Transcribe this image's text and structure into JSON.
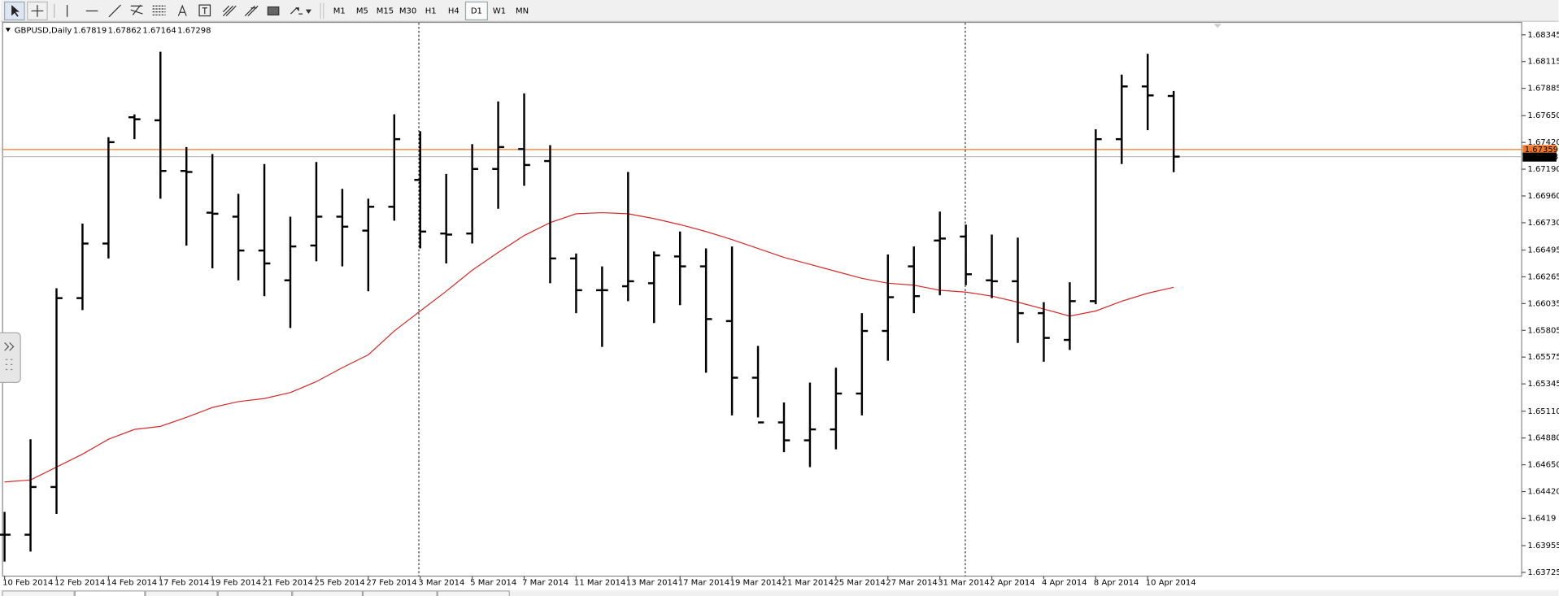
{
  "toolbar": {
    "timeframes": [
      "M1",
      "M5",
      "M15",
      "M30",
      "H1",
      "H4",
      "D1",
      "W1",
      "MN"
    ],
    "active_timeframe": "D1"
  },
  "chart_data": {
    "type": "ohlc",
    "title": "GBPUSD,Daily",
    "categories": [
      "10 Feb 2014",
      null,
      "12 Feb 2014",
      null,
      "14 Feb 2014",
      null,
      "17 Feb 2014",
      null,
      "19 Feb 2014",
      null,
      "21 Feb 2014",
      null,
      "25 Feb 2014",
      null,
      "27 Feb 2014",
      null,
      "3 Mar 2014",
      null,
      "5 Mar 2014",
      null,
      "7 Mar 2014",
      null,
      "11 Mar 2014",
      null,
      "13 Mar 2014",
      null,
      "17 Mar 2014",
      null,
      "19 Mar 2014",
      null,
      "21 Mar 2014",
      null,
      "25 Mar 2014",
      null,
      "27 Mar 2014",
      null,
      "31 Mar 2014",
      null,
      "2 Apr 2014",
      null,
      "4 Apr 2014",
      null,
      "8 Apr 2014",
      null,
      "10 Apr 2014",
      null
    ],
    "open": [
      1.64049,
      1.64049,
      1.64459,
      1.66082,
      1.66551,
      1.67636,
      1.6761,
      1.67175,
      1.66816,
      1.66782,
      1.66491,
      1.66235,
      1.66534,
      1.66782,
      1.66662,
      1.66867,
      1.67098,
      1.66637,
      1.66637,
      1.67192,
      1.67363,
      1.6726,
      1.66423,
      1.6615,
      1.66184,
      1.6621,
      1.6644,
      1.66355,
      1.65885,
      1.65398,
      1.65014,
      1.6486,
      1.64954,
      1.65262,
      1.658,
      1.66355,
      1.66577,
      1.66611,
      1.66235,
      1.66227,
      1.65953,
      1.65723,
      1.66056,
      1.67448,
      1.67901,
      1.67819
    ],
    "high": [
      1.64245,
      1.64869,
      1.66167,
      1.66722,
      1.67465,
      1.67661,
      1.68199,
      1.6738,
      1.6732,
      1.66978,
      1.67234,
      1.66782,
      1.67252,
      1.67021,
      1.66936,
      1.67661,
      1.67516,
      1.67149,
      1.67405,
      1.67772,
      1.67841,
      1.67397,
      1.66466,
      1.66355,
      1.67166,
      1.66483,
      1.66654,
      1.66509,
      1.66526,
      1.65672,
      1.65185,
      1.65356,
      1.65484,
      1.65953,
      1.66457,
      1.66526,
      1.66825,
      1.66714,
      1.66628,
      1.66602,
      1.66047,
      1.66218,
      1.67533,
      1.68003,
      1.68182,
      1.67862
    ],
    "low": [
      1.63818,
      1.63904,
      1.64228,
      1.65979,
      1.66423,
      1.67448,
      1.66936,
      1.66534,
      1.66338,
      1.66235,
      1.66099,
      1.65825,
      1.66398,
      1.66355,
      1.66141,
      1.66748,
      1.66509,
      1.6638,
      1.66551,
      1.6685,
      1.67047,
      1.6621,
      1.65953,
      1.65663,
      1.66056,
      1.65868,
      1.66022,
      1.65441,
      1.65074,
      1.65057,
      1.64758,
      1.6463,
      1.64783,
      1.65074,
      1.65544,
      1.65953,
      1.66107,
      1.66193,
      1.66082,
      1.65697,
      1.65535,
      1.65637,
      1.6603,
      1.67234,
      1.67525,
      1.67164
    ],
    "close": [
      1.64049,
      1.64459,
      1.66082,
      1.66551,
      1.67422,
      1.67619,
      1.67175,
      1.67166,
      1.66807,
      1.66491,
      1.6638,
      1.66526,
      1.66782,
      1.66696,
      1.66867,
      1.67448,
      1.66654,
      1.66628,
      1.67192,
      1.6738,
      1.67226,
      1.66423,
      1.6615,
      1.6615,
      1.66227,
      1.66449,
      1.66355,
      1.65902,
      1.65398,
      1.65014,
      1.6486,
      1.64954,
      1.65262,
      1.658,
      1.6609,
      1.66099,
      1.66594,
      1.66287,
      1.66227,
      1.65953,
      1.6574,
      1.66056,
      1.67448,
      1.67901,
      1.67824,
      1.67298
    ],
    "color": "#000000",
    "moving_average": {
      "color": "#d42a2a",
      "values": [
        1.64502,
        1.64519,
        1.6463,
        1.64741,
        1.64869,
        1.64954,
        1.6498,
        1.65057,
        1.65142,
        1.65193,
        1.65219,
        1.6527,
        1.65364,
        1.65484,
        1.65595,
        1.658,
        1.65971,
        1.66141,
        1.66321,
        1.66474,
        1.6662,
        1.66731,
        1.66807,
        1.66816,
        1.66807,
        1.66765,
        1.66714,
        1.66654,
        1.66585,
        1.66509,
        1.66432,
        1.66372,
        1.66312,
        1.66252,
        1.6621,
        1.66193,
        1.6615,
        1.66133,
        1.66099,
        1.66047,
        1.65988,
        1.65928,
        1.65971,
        1.66056,
        1.66124,
        1.66175
      ]
    },
    "price_line": {
      "value": 1.67359,
      "color": "#f07828"
    },
    "ylim": [
      1.63693,
      1.68456
    ],
    "yticks": [
      1.68345,
      1.68115,
      1.67885,
      {
        "value": 1.6765,
        "label": "1.67650"
      },
      {
        "value": 1.6742,
        "label": "1.67420"
      },
      {
        "value": 1.6719,
        "label": "1.67190"
      },
      {
        "value": 1.6696,
        "label": "1.66960"
      },
      {
        "value": 1.6673,
        "label": "1.66730"
      },
      1.66495,
      1.66265,
      1.66035,
      1.65805,
      1.65575,
      1.65345,
      {
        "value": 1.6511,
        "label": "1.65110"
      },
      {
        "value": 1.6488,
        "label": "1.64880"
      },
      {
        "value": 1.6465,
        "label": "1.64650"
      },
      {
        "value": 1.6442,
        "label": "1.64420"
      },
      1.6419,
      1.63955,
      1.63725
    ]
  }
}
